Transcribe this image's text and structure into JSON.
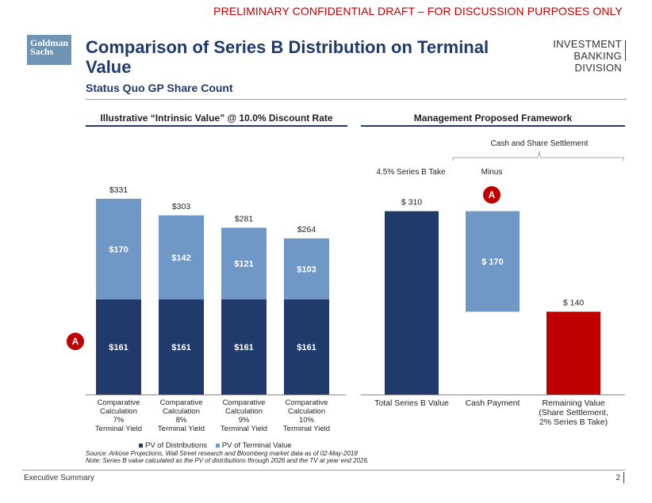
{
  "banner": "PRELIMINARY CONFIDENTIAL DRAFT – FOR DISCUSSION PURPOSES ONLY",
  "logo": {
    "line1": "Goldman",
    "line2": "Sachs"
  },
  "title": "Comparison of Series B Distribution on Terminal Value",
  "subtitle": "Status Quo GP Share Count",
  "division": {
    "line1": "INVESTMENT BANKING",
    "line2": "DIVISION"
  },
  "left_section": {
    "heading": "Illustrative “Intrinsic Value” @ 10.0% Discount Rate",
    "badge": "A"
  },
  "right_section": {
    "heading": "Management Proposed Framework",
    "bracket_label": "Cash and Share Settlement",
    "take_label": "4.5% Series B Take",
    "minus_label": "Minus",
    "badge": "A"
  },
  "legend": {
    "dist": "PV of Distributions",
    "tv": "PV of Terminal Value"
  },
  "notes": {
    "source": "Source: Arkose Projections, Wall Street research and Bloomberg market data as of 02-May-2018",
    "note": "Note: Series B value calculated as the PV of distributions through 2026 and the TV at year end 2026."
  },
  "footer": {
    "left": "Executive Summary",
    "page": "2"
  },
  "colors": {
    "dark": "#1f3a6b",
    "light": "#7098c6",
    "red": "#c00000"
  },
  "chart_data": [
    {
      "type": "bar",
      "stacked": true,
      "title": "Illustrative “Intrinsic Value” @ 10.0% Discount Rate",
      "categories": [
        [
          "Comparative",
          "Calculation",
          "7%",
          "Terminal Yield"
        ],
        [
          "Comparative",
          "Calculation",
          "8%",
          "Terminal Yield"
        ],
        [
          "Comparative",
          "Calculation",
          "9%",
          "Terminal Yield"
        ],
        [
          "Comparative",
          "Calculation",
          "10%",
          "Terminal Yield"
        ]
      ],
      "series": [
        {
          "name": "PV of Distributions",
          "values": [
            161,
            161,
            161,
            161
          ],
          "labels": [
            "$161",
            "$161",
            "$161",
            "$161"
          ]
        },
        {
          "name": "PV of Terminal Value",
          "values": [
            170,
            142,
            121,
            103
          ],
          "labels": [
            "$170",
            "$142",
            "$121",
            "$103"
          ]
        }
      ],
      "totals": [
        331,
        303,
        281,
        264
      ],
      "total_labels": [
        "$331",
        "$303",
        "$281",
        "$264"
      ],
      "ylim": [
        0,
        331
      ]
    },
    {
      "type": "bar",
      "waterfall": true,
      "title": "Management Proposed Framework",
      "categories": [
        [
          "Total Series B Value"
        ],
        [
          "Cash Payment"
        ],
        [
          "Remaining Value",
          "(Share Settlement,",
          "2% Series B Take)"
        ]
      ],
      "values": [
        310,
        170,
        140
      ],
      "value_labels": [
        "$ 310",
        "$ 170",
        "$ 140"
      ],
      "ylim": [
        0,
        331
      ]
    }
  ]
}
